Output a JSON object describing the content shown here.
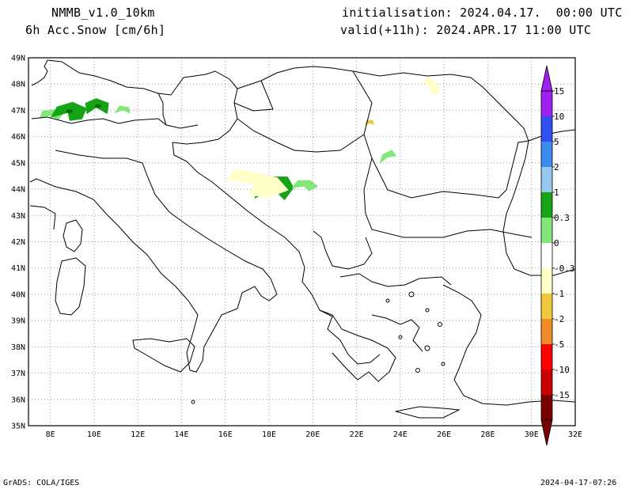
{
  "header": {
    "model": "NMMB_v1.0_10km",
    "field": "6h Acc.Snow [cm/6h]",
    "init": "initialisation: 2024.04.17.  00:00 UTC",
    "valid": "valid(+11h): 2024.APR.17 11:00 UTC"
  },
  "map": {
    "lat_labels": [
      "49N",
      "48N",
      "47N",
      "46N",
      "45N",
      "44N",
      "43N",
      "42N",
      "41N",
      "40N",
      "39N",
      "38N",
      "37N",
      "36N",
      "35N"
    ],
    "lon_labels": [
      "8E",
      "10E",
      "12E",
      "14E",
      "16E",
      "18E",
      "20E",
      "22E",
      "24E",
      "26E",
      "28E",
      "30E",
      "32E"
    ],
    "lon_range": [
      7,
      32
    ],
    "lat_range": [
      35,
      49
    ],
    "snow_areas": [
      {
        "lon": 8.0,
        "lat": 46.8,
        "level": "0.3"
      },
      {
        "lon": 8.8,
        "lat": 46.9,
        "level": "1"
      },
      {
        "lon": 10.1,
        "lat": 47.1,
        "level": "1"
      },
      {
        "lon": 11.3,
        "lat": 47.0,
        "level": "0.3"
      },
      {
        "lon": 18.2,
        "lat": 44.0,
        "level": "1"
      },
      {
        "lon": 19.6,
        "lat": 44.1,
        "level": "0.3"
      },
      {
        "lon": 23.4,
        "lat": 45.2,
        "level": "0.3"
      },
      {
        "lon": 17.3,
        "lat": 44.2,
        "level": "-0.3"
      },
      {
        "lon": 25.3,
        "lat": 47.9,
        "level": "-0.3"
      },
      {
        "lon": 22.6,
        "lat": 46.5,
        "level": "-1"
      }
    ]
  },
  "colorbar": {
    "labels": [
      "15",
      "10",
      "5",
      "2",
      "1",
      "0.3",
      "0",
      "-0.3",
      "-1",
      "-2",
      "-5",
      "-10",
      "-15"
    ],
    "colors": [
      "#a020f0",
      "#3050f0",
      "#3c8cf0",
      "#96c8f0",
      "#16a416",
      "#82e67a",
      "#ffffff",
      "#ffffc8",
      "#f0c83c",
      "#f08c28",
      "#ff0000",
      "#c80000",
      "#780000"
    ],
    "top_arrow_color": "#a020f0",
    "bottom_arrow_color": "#780000"
  },
  "footer": {
    "left": "GrADS: COLA/IGES",
    "right": "2024-04-17-07:26"
  }
}
